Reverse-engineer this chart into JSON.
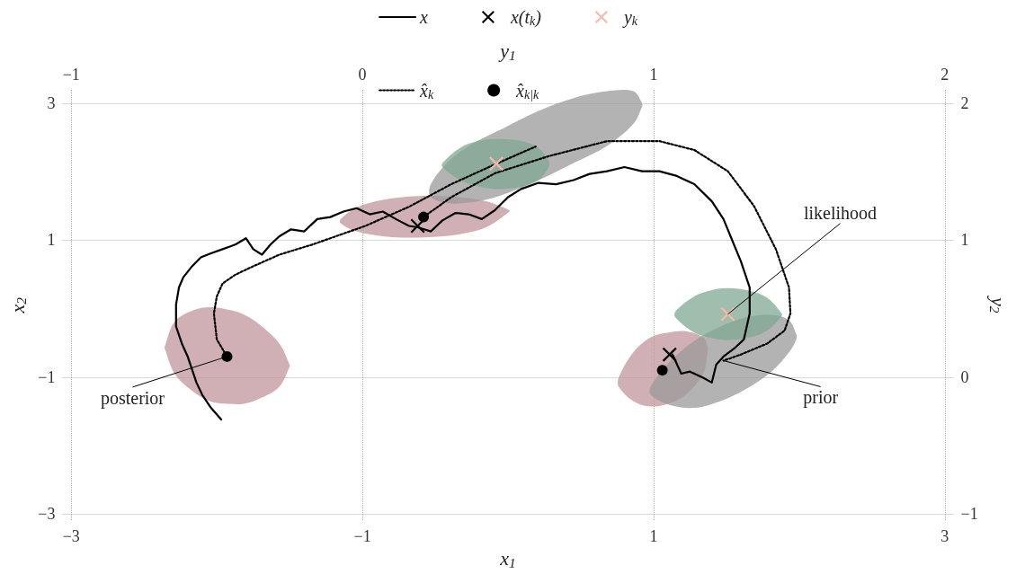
{
  "chart_data": {
    "type": "line",
    "xlabel": "x$_{1}$",
    "ylabel": "x$_{2}$",
    "x2label": "y$_{1}$",
    "y2label": "y$_{2}$",
    "xlim": [
      -3.06,
      3.06
    ],
    "ylim": [
      -3.1,
      3.2
    ],
    "x2lim": [
      -1.03,
      2.03
    ],
    "y2lim": [
      -1.05,
      2.1
    ],
    "xticks": [
      {
        "value": -3,
        "label": "−3"
      },
      {
        "value": -1,
        "label": "−1"
      },
      1,
      3
    ],
    "yticks": [
      {
        "value": -3,
        "label": "−3"
      },
      {
        "value": -1,
        "label": "−1"
      },
      1,
      3
    ],
    "x2ticks": [
      {
        "value": -1,
        "label": "−1"
      },
      0,
      1,
      2
    ],
    "y2ticks": [
      {
        "value": -1,
        "label": "−1"
      },
      0,
      1,
      2
    ],
    "grid": true,
    "legend": "top",
    "annotations": [
      {
        "text": "posterior",
        "x": -1.93,
        "y": -0.7
      },
      {
        "text": "likelihood",
        "x": 1.51,
        "y": -0.08
      },
      {
        "text": "prior",
        "x": 1.48,
        "y": -0.76
      }
    ],
    "series": [
      {
        "name": "x",
        "color": "#000000",
        "line_style": "solid",
        "x": [
          -1.97,
          -2.04,
          -2.1,
          -2.14,
          -2.17,
          -2.2,
          -2.24,
          -2.28,
          -2.28,
          -2.26,
          -2.23,
          -2.17,
          -2.11,
          -2.04,
          -1.96,
          -1.87,
          -1.8,
          -1.75,
          -1.69,
          -1.63,
          -1.57,
          -1.49,
          -1.4,
          -1.31,
          -1.22,
          -1.13,
          -1.04,
          -0.95,
          -0.86,
          -0.77,
          -0.68,
          -0.62,
          -0.53,
          -0.45,
          -0.36,
          -0.27,
          -0.18,
          -0.09,
          0.0,
          0.09,
          0.21,
          0.33,
          0.45,
          0.56,
          0.68,
          0.8,
          0.92,
          1.04,
          1.16,
          1.28,
          1.4,
          1.48,
          1.54,
          1.6,
          1.66,
          1.66,
          1.62,
          1.56,
          1.48,
          1.43,
          1.4,
          1.34,
          1.25,
          1.19,
          1.13
        ],
        "values": [
          -1.62,
          -1.45,
          -1.26,
          -1.08,
          -0.89,
          -0.7,
          -0.51,
          -0.26,
          0.06,
          0.31,
          0.46,
          0.62,
          0.75,
          0.81,
          0.87,
          0.94,
          1.03,
          0.87,
          0.79,
          0.94,
          1.06,
          1.16,
          1.13,
          1.31,
          1.34,
          1.42,
          1.47,
          1.38,
          1.42,
          1.31,
          1.21,
          1.19,
          1.13,
          1.29,
          1.4,
          1.38,
          1.31,
          1.44,
          1.63,
          1.75,
          1.84,
          1.82,
          1.88,
          1.97,
          2.01,
          2.07,
          2.01,
          2.01,
          1.94,
          1.82,
          1.57,
          1.31,
          1.0,
          0.69,
          0.31,
          -0.07,
          -0.45,
          -0.57,
          -0.7,
          -0.82,
          -1.08,
          -1.01,
          -0.92,
          -0.95,
          -0.67
        ]
      },
      {
        "name": "x(t$_{k}$)",
        "type": "scatter",
        "marker": "cross",
        "color": "#000000",
        "x": [
          -0.62,
          1.11
        ],
        "values": [
          1.21,
          -0.67
        ]
      },
      {
        "name": "y$_{k}$",
        "type": "scatter",
        "marker": "cross",
        "color": "#f7b9ad",
        "x": [
          -0.08,
          1.51
        ],
        "values": [
          2.12,
          -0.08
        ]
      },
      {
        "name": "x̂$_{k}$",
        "color": "#000000",
        "line_style": "dotted",
        "x": [
          -1.93,
          -2.0,
          -2.02,
          -2.0,
          -1.96,
          -1.87,
          -1.75,
          -1.57,
          -1.34,
          -1.22,
          -0.98,
          -0.68,
          -0.39,
          -0.09,
          0.19,
          null,
          -0.58,
          -0.39,
          -0.09,
          0.28,
          0.68,
          1.04,
          1.28,
          1.51,
          1.69,
          1.84,
          1.93,
          1.94,
          1.9,
          1.78,
          1.6,
          1.48
        ],
        "values": [
          -0.7,
          -0.45,
          -0.07,
          0.18,
          0.37,
          0.5,
          0.62,
          0.79,
          0.94,
          1.03,
          1.21,
          1.49,
          1.82,
          2.11,
          2.37,
          null,
          1.34,
          1.63,
          1.98,
          2.23,
          2.45,
          2.45,
          2.32,
          2.01,
          1.5,
          0.87,
          0.31,
          -0.07,
          -0.32,
          -0.51,
          -0.67,
          -0.76
        ]
      },
      {
        "name": "x̂$_{k|k}$",
        "type": "scatter",
        "marker": "circle",
        "color": "#000000",
        "x": [
          -1.93,
          -0.58,
          1.06
        ],
        "values": [
          -0.7,
          1.34,
          -0.9
        ]
      },
      {
        "type": "area",
        "color": "#c0969c",
        "x": [
          -2.36,
          -2.29,
          -2.17,
          -2.05,
          -1.93,
          -1.81,
          -1.69,
          -1.57,
          -1.5
        ],
        "values": [
          null,
          null,
          null,
          null,
          null,
          null,
          null,
          null,
          null
        ],
        "upper": [
          -0.57,
          -0.19,
          -0.03,
          0.02,
          -0.01,
          -0.09,
          -0.26,
          -0.51,
          -0.82
        ],
        "lower": [
          -0.57,
          -0.95,
          -1.2,
          -1.35,
          -1.39,
          -1.39,
          -1.3,
          -1.14,
          -0.85
        ]
      },
      {
        "type": "area",
        "color": "#c0969c",
        "x": [
          -1.15,
          -1.04,
          -0.86,
          -0.68,
          -0.51,
          -0.33,
          -0.15,
          0.01
        ],
        "values": [
          null,
          null,
          null,
          null,
          null,
          null,
          null,
          null
        ],
        "upper": [
          1.31,
          1.48,
          1.59,
          1.64,
          1.65,
          1.63,
          1.57,
          1.44
        ],
        "lower": [
          1.25,
          1.13,
          1.06,
          1.04,
          1.05,
          1.09,
          1.19,
          1.42
        ]
      },
      {
        "type": "area",
        "color": "#c0969c",
        "x": [
          0.76,
          0.86,
          0.98,
          1.1,
          1.22,
          1.34,
          1.37
        ],
        "values": [
          null,
          null,
          null,
          null,
          null,
          null,
          null
        ],
        "upper": [
          -1.01,
          -0.64,
          -0.42,
          -0.35,
          -0.33,
          -0.42,
          -0.55
        ],
        "lower": [
          -1.14,
          -1.35,
          -1.43,
          -1.39,
          -1.26,
          -0.95,
          -0.64
        ]
      },
      {
        "type": "area",
        "color": "#999999",
        "x": [
          -0.53,
          -0.39,
          -0.21,
          -0.03,
          0.21,
          0.45,
          0.68,
          0.86,
          0.92
        ],
        "values": [
          null,
          null,
          null,
          null,
          null,
          null,
          null,
          null,
          null
        ],
        "upper": [
          1.82,
          2.19,
          2.45,
          2.64,
          2.89,
          3.08,
          3.18,
          3.18,
          3.01
        ],
        "lower": [
          1.63,
          1.54,
          1.57,
          1.67,
          1.88,
          2.13,
          2.38,
          2.7,
          2.95
        ]
      },
      {
        "type": "area",
        "color": "#999999",
        "x": [
          0.98,
          1.1,
          1.28,
          1.46,
          1.63,
          1.81,
          1.93,
          1.98
        ],
        "values": [
          null,
          null,
          null,
          null,
          null,
          null,
          null,
          null
        ],
        "upper": [
          -1.14,
          -0.8,
          -0.47,
          -0.26,
          -0.13,
          -0.09,
          -0.17,
          -0.38
        ],
        "lower": [
          -1.26,
          -1.4,
          -1.45,
          -1.35,
          -1.18,
          -0.92,
          -0.64,
          -0.45
        ]
      },
      {
        "type": "area",
        "color": "#7fa893",
        "x": [
          -0.45,
          -0.33,
          -0.21,
          -0.08,
          0.09,
          0.21,
          0.28
        ],
        "values": [
          null,
          null,
          null,
          null,
          null,
          null,
          null
        ],
        "upper": [
          2.13,
          2.35,
          2.45,
          2.48,
          2.45,
          2.35,
          2.16
        ],
        "lower": [
          2.07,
          1.88,
          1.79,
          1.75,
          1.78,
          1.88,
          2.07
        ]
      },
      {
        "type": "area",
        "color": "#7fa893",
        "x": [
          1.15,
          1.28,
          1.4,
          1.51,
          1.66,
          1.78,
          1.88
        ],
        "values": [
          null,
          null,
          null,
          null,
          null,
          null,
          null
        ],
        "upper": [
          -0.04,
          0.18,
          0.27,
          0.3,
          0.26,
          0.16,
          -0.07
        ],
        "lower": [
          -0.13,
          -0.35,
          -0.43,
          -0.46,
          -0.42,
          -0.32,
          -0.11
        ]
      }
    ]
  }
}
